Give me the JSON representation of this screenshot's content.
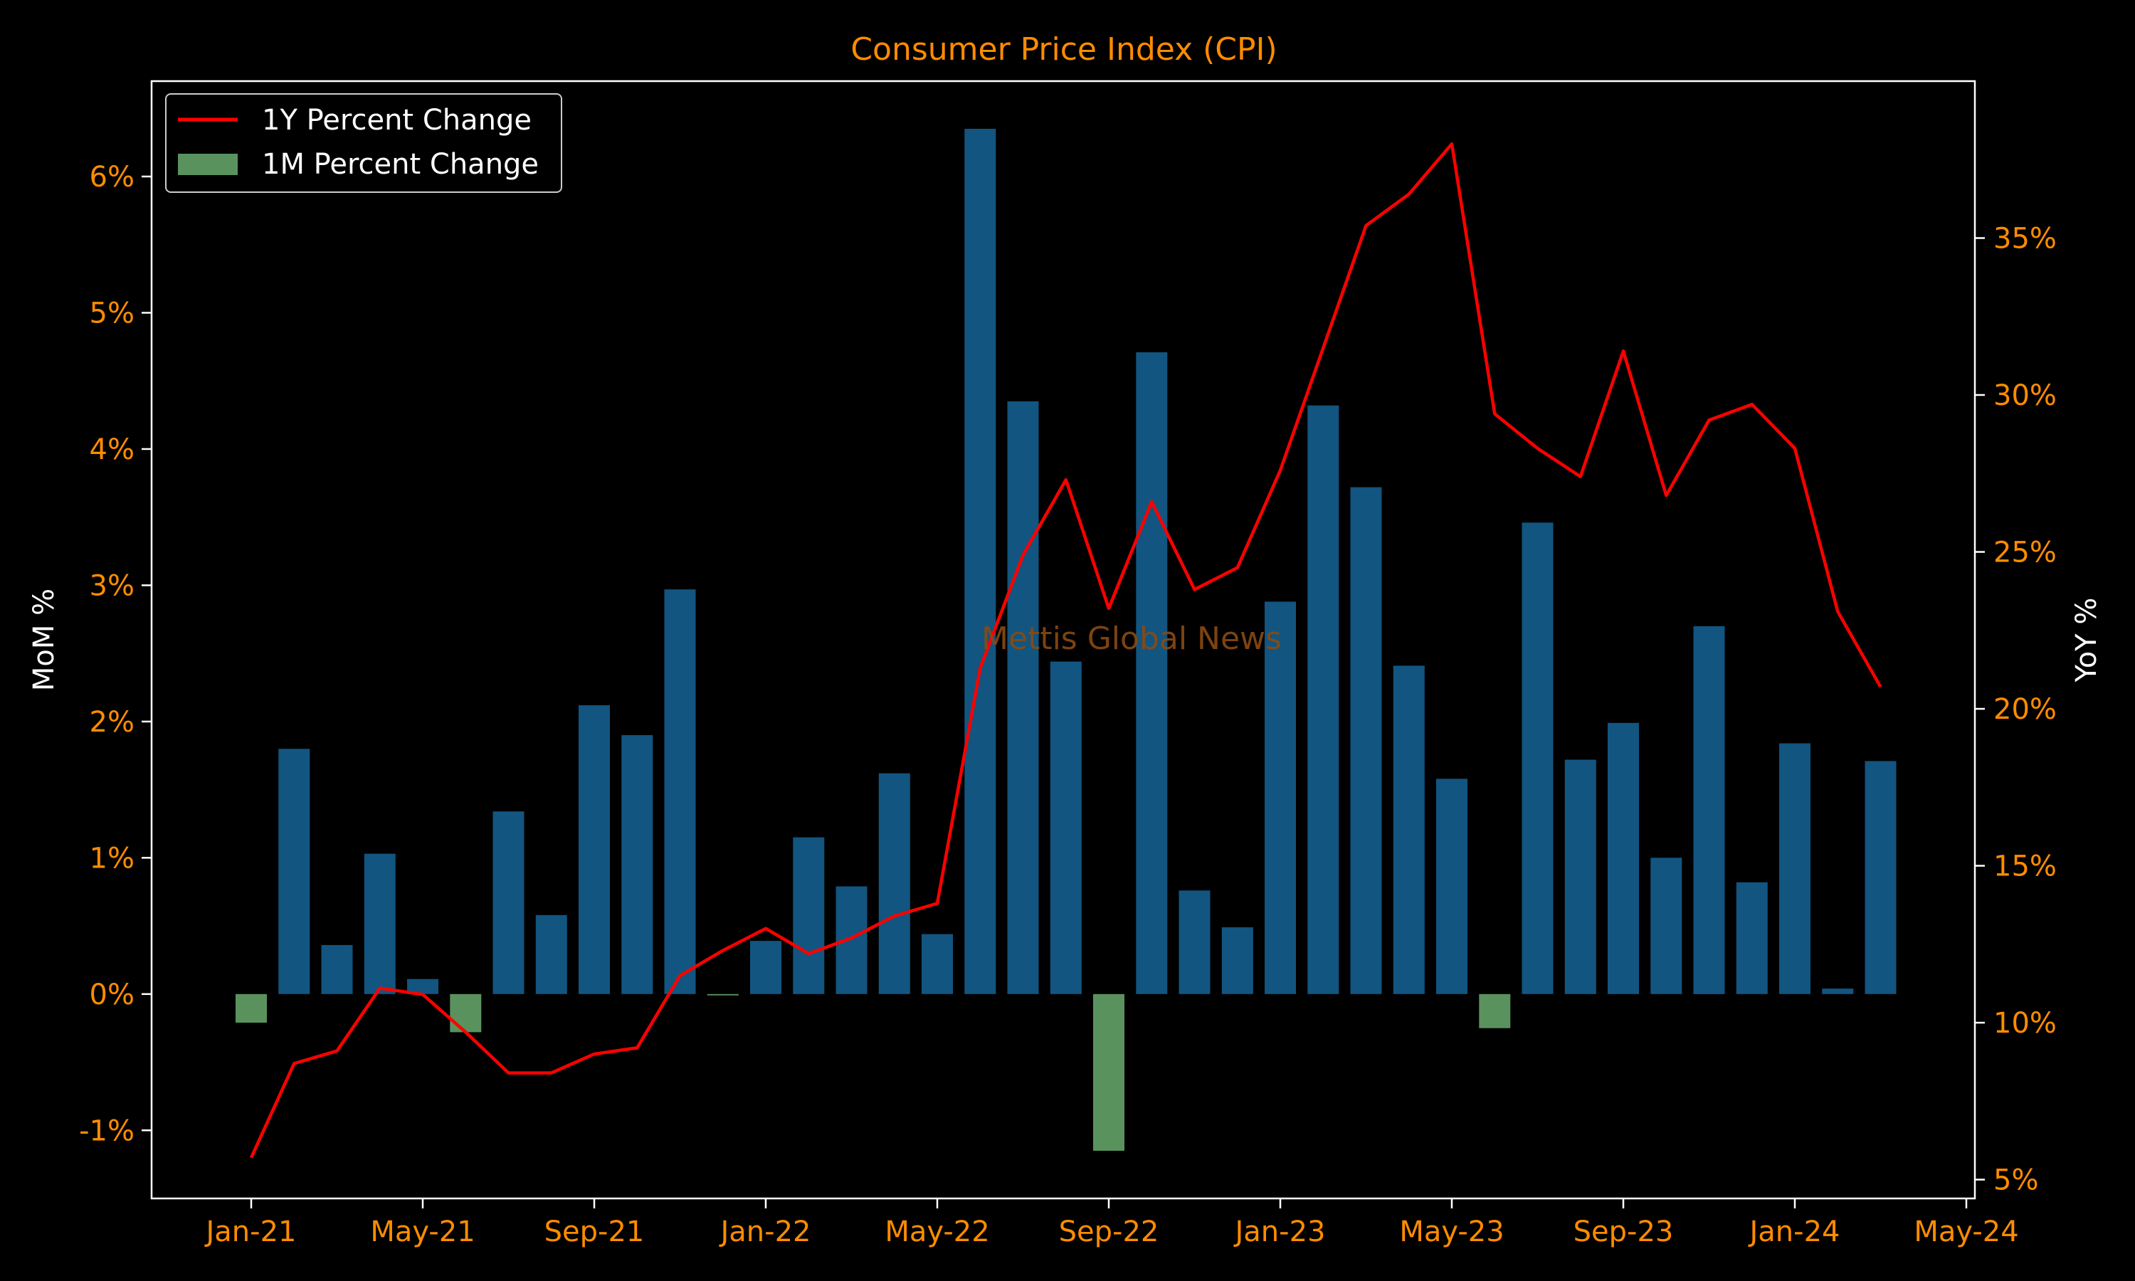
{
  "chart_data": {
    "type": "bar+line",
    "title": "Consumer Price Index (CPI)",
    "ylabel_left": "MoM %",
    "ylabel_right": "YoY %",
    "watermark": "Mettis Global News",
    "x_ticks": [
      "Jan-21",
      "May-21",
      "Sep-21",
      "Jan-22",
      "May-22",
      "Sep-22",
      "Jan-23",
      "May-23",
      "Sep-23",
      "Jan-24",
      "May-24"
    ],
    "y_left_ticks": [
      "-1%",
      "0%",
      "1%",
      "2%",
      "3%",
      "4%",
      "5%",
      "6%"
    ],
    "y_right_ticks": [
      "5%",
      "10%",
      "15%",
      "20%",
      "25%",
      "30%",
      "35%"
    ],
    "ylim_left": [
      -1.5,
      6.7
    ],
    "ylim_right": [
      4.4,
      40.0
    ],
    "legend_position": "top-left",
    "dates": [
      "2021-01",
      "2021-02",
      "2021-03",
      "2021-04",
      "2021-05",
      "2021-06",
      "2021-07",
      "2021-08",
      "2021-09",
      "2021-10",
      "2021-11",
      "2021-12",
      "2022-01",
      "2022-02",
      "2022-03",
      "2022-04",
      "2022-05",
      "2022-06",
      "2022-07",
      "2022-08",
      "2022-09",
      "2022-10",
      "2022-11",
      "2022-12",
      "2023-01",
      "2023-02",
      "2023-03",
      "2023-04",
      "2023-05",
      "2023-06",
      "2023-07",
      "2023-08",
      "2023-09",
      "2023-10",
      "2023-11",
      "2023-12",
      "2024-01",
      "2024-02",
      "2024-03"
    ],
    "series": [
      {
        "name": "1M Percent Change",
        "kind": "bar",
        "positive_color": "#125580",
        "negative_color": "#5a925e",
        "values": [
          -0.21,
          1.8,
          0.36,
          1.03,
          0.11,
          -0.28,
          1.34,
          0.58,
          2.12,
          1.9,
          2.97,
          -0.01,
          0.39,
          1.15,
          0.79,
          1.62,
          0.44,
          6.35,
          4.35,
          2.44,
          -1.15,
          4.71,
          0.76,
          0.49,
          2.88,
          4.32,
          3.72,
          2.41,
          1.58,
          -0.25,
          3.46,
          1.72,
          1.99,
          1.0,
          2.7,
          0.82,
          1.84,
          0.04,
          1.71
        ]
      },
      {
        "name": "1Y Percent Change",
        "kind": "line",
        "color": "#ff0000",
        "values": [
          5.7,
          8.7,
          9.1,
          11.1,
          10.9,
          9.7,
          8.4,
          8.4,
          9.0,
          9.2,
          11.5,
          12.3,
          13.0,
          12.2,
          12.7,
          13.4,
          13.8,
          21.3,
          24.9,
          27.3,
          23.2,
          26.6,
          23.8,
          24.5,
          27.6,
          31.5,
          35.4,
          36.4,
          38.0,
          29.4,
          28.3,
          27.4,
          31.4,
          26.8,
          29.2,
          29.7,
          28.3,
          23.1,
          20.7
        ]
      }
    ],
    "colors": {
      "background": "#000000",
      "frame": "#ffffff",
      "title": "#ff8c00",
      "tick_label": "#ff8c00",
      "axis_label": "#ffffff",
      "watermark": "#8a4a12"
    }
  }
}
